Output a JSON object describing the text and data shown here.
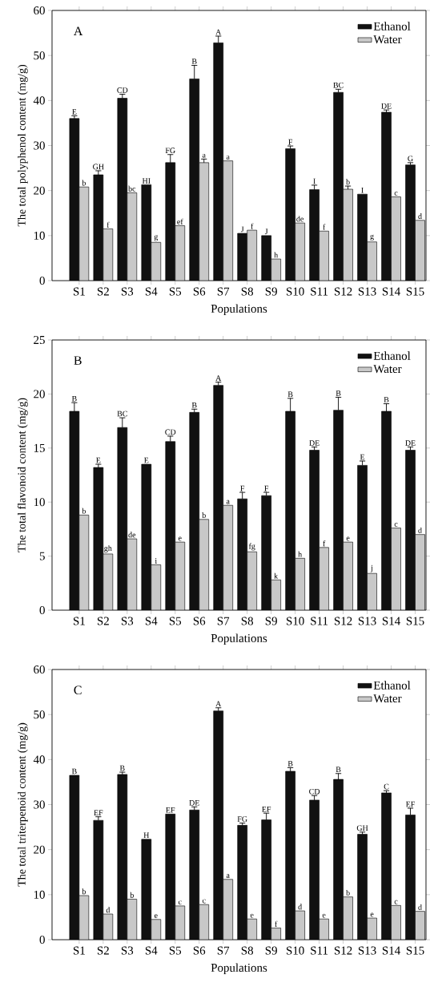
{
  "chart_data": [
    {
      "type": "bar",
      "annotations": [
        "A"
      ],
      "xlabel": "Populations",
      "ylabel": "The total polyphenol content (mg/g)",
      "categories": [
        "S1",
        "S2",
        "S3",
        "S4",
        "S5",
        "S6",
        "S7",
        "S8",
        "S9",
        "S10",
        "S11",
        "S12",
        "S13",
        "S14",
        "S15"
      ],
      "ylim": [
        0,
        60
      ],
      "yticks": [
        0,
        10,
        20,
        30,
        40,
        50,
        60
      ],
      "legend": "top right",
      "series": [
        {
          "name": "Ethanol",
          "color": "#111111",
          "values": [
            36,
            23.5,
            40.5,
            21.3,
            26.2,
            44.8,
            52.8,
            10.5,
            10,
            29.3,
            20.2,
            41.8,
            19.2,
            37.4,
            25.7
          ],
          "errors": [
            [
              36,
              36.6
            ],
            [
              23.5,
              24.4
            ],
            [
              40.5,
              41.4
            ],
            null,
            [
              26.2,
              28
            ],
            [
              44.8,
              47.8
            ],
            [
              52.8,
              54.3
            ],
            null,
            null,
            [
              29.3,
              29.9
            ],
            [
              20.2,
              21.2
            ],
            [
              41.8,
              42.5
            ],
            null,
            [
              37.4,
              37.9
            ],
            [
              25.7,
              26.2
            ]
          ],
          "value_labels": [
            "E",
            "GH",
            "CD",
            "HI",
            "FG",
            "B",
            "A",
            "J",
            "J",
            "F",
            "I",
            "BC",
            "I",
            "DE",
            "G"
          ]
        },
        {
          "name": "Water",
          "color": "#c8c8c8",
          "values": [
            20.8,
            11.5,
            19.5,
            8.5,
            12.2,
            26.2,
            26.6,
            11.2,
            4.8,
            12.8,
            11,
            20.3,
            8.6,
            18.6,
            13.4
          ],
          "errors": [
            null,
            null,
            null,
            null,
            null,
            [
              26.2,
              27
            ],
            null,
            null,
            null,
            null,
            null,
            [
              20.3,
              21
            ],
            null,
            null,
            null
          ],
          "value_labels": [
            "b",
            "f",
            "bc",
            "g",
            "ef",
            "a",
            "a",
            "f",
            "h",
            "de",
            "f",
            "b",
            "g",
            "c",
            "d"
          ]
        }
      ]
    },
    {
      "type": "bar",
      "annotations": [
        "B"
      ],
      "xlabel": "Populations",
      "ylabel": "The total flavonoid content (mg/g)",
      "categories": [
        "S1",
        "S2",
        "S3",
        "S4",
        "S5",
        "S6",
        "S7",
        "S8",
        "S9",
        "S10",
        "S11",
        "S12",
        "S13",
        "S14",
        "S15"
      ],
      "ylim": [
        0,
        25
      ],
      "yticks": [
        0,
        5,
        10,
        15,
        20,
        25
      ],
      "legend": "top right",
      "series": [
        {
          "name": "Ethanol",
          "color": "#111111",
          "values": [
            18.4,
            13.2,
            16.9,
            13.5,
            15.6,
            18.3,
            20.8,
            10.3,
            10.6,
            18.4,
            14.8,
            18.5,
            13.4,
            18.4,
            14.8
          ],
          "errors": [
            [
              18.4,
              19.2
            ],
            [
              13.2,
              13.5
            ],
            [
              16.9,
              17.8
            ],
            null,
            [
              15.6,
              16.1
            ],
            [
              18.3,
              18.6
            ],
            [
              20.8,
              21.1
            ],
            [
              10.3,
              10.9
            ],
            [
              10.6,
              10.9
            ],
            [
              18.4,
              19.6
            ],
            [
              14.8,
              15.1
            ],
            [
              18.5,
              19.7
            ],
            [
              13.4,
              13.8
            ],
            [
              18.4,
              19.1
            ],
            [
              14.8,
              15.1
            ]
          ],
          "value_labels": [
            "B",
            "E",
            "BC",
            "E",
            "CD",
            "B",
            "A",
            "F",
            "F",
            "B",
            "DE",
            "B",
            "E",
            "B",
            "DE"
          ]
        },
        {
          "name": "Water",
          "color": "#c8c8c8",
          "values": [
            8.8,
            5.2,
            6.6,
            4.2,
            6.3,
            8.4,
            9.7,
            5.4,
            2.8,
            4.8,
            5.8,
            6.3,
            3.4,
            7.6,
            7
          ],
          "value_labels": [
            "b",
            "gh",
            "de",
            "i",
            "e",
            "b",
            "a",
            "fg",
            "k",
            "h",
            "f",
            "e",
            "j",
            "c",
            "d"
          ]
        }
      ]
    },
    {
      "type": "bar",
      "annotations": [
        "C"
      ],
      "xlabel": "Populations",
      "ylabel": "The total triterpenoid content (mg/g)",
      "categories": [
        "S1",
        "S2",
        "S3",
        "S4",
        "S5",
        "S6",
        "S7",
        "S8",
        "S9",
        "S10",
        "S11",
        "S12",
        "S13",
        "S14",
        "S15"
      ],
      "ylim": [
        0,
        60
      ],
      "yticks": [
        0,
        10,
        20,
        30,
        40,
        50,
        60
      ],
      "legend": "top right",
      "series": [
        {
          "name": "Ethanol",
          "color": "#111111",
          "values": [
            36.5,
            26.5,
            36.7,
            22.3,
            27.9,
            28.8,
            50.8,
            25.4,
            26.6,
            37.4,
            31,
            35.6,
            23.4,
            32.6,
            27.7
          ],
          "errors": [
            null,
            [
              26.5,
              27.3
            ],
            [
              36.7,
              37.2
            ],
            null,
            null,
            [
              28.8,
              29.5
            ],
            [
              50.8,
              51.5
            ],
            [
              25.4,
              25.9
            ],
            [
              26.6,
              28.1
            ],
            [
              37.4,
              38.2
            ],
            [
              31,
              32
            ],
            [
              35.6,
              36.9
            ],
            [
              23.4,
              23.9
            ],
            [
              32.6,
              33.1
            ],
            [
              27.7,
              29.2
            ]
          ],
          "value_labels": [
            "B",
            "EF",
            "B",
            "H",
            "EF",
            "DE",
            "A",
            "FG",
            "EF",
            "B",
            "CD",
            "B",
            "GH",
            "C",
            "EF"
          ]
        },
        {
          "name": "Water",
          "color": "#c8c8c8",
          "values": [
            9.8,
            5.7,
            9,
            4.5,
            7.5,
            7.8,
            13.4,
            4.6,
            2.6,
            6.4,
            4.6,
            9.5,
            4.8,
            7.6,
            6.3
          ],
          "value_labels": [
            "b",
            "d",
            "b",
            "e",
            "c",
            "c",
            "a",
            "e",
            "f",
            "d",
            "e",
            "b",
            "e",
            "c",
            "d"
          ]
        }
      ]
    }
  ]
}
